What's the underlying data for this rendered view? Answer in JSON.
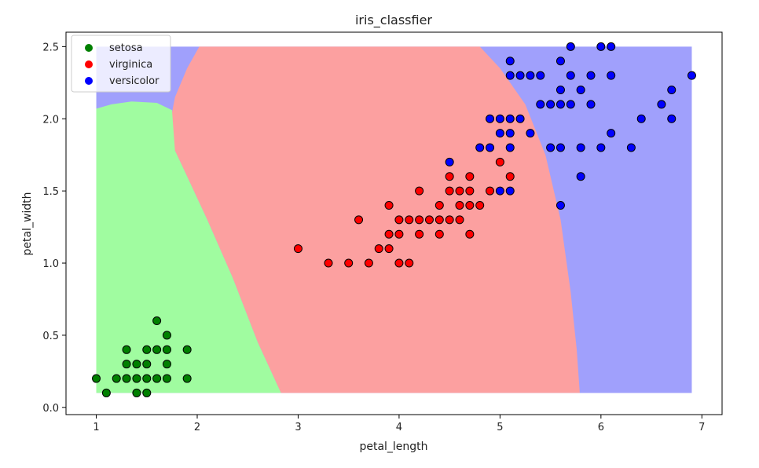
{
  "chart_data": {
    "type": "scatter",
    "title": "iris_classfier",
    "xlabel": "petal_length",
    "ylabel": "petal_width",
    "xlim": [
      0.7,
      7.2
    ],
    "ylim": [
      -0.05,
      2.6
    ],
    "xticks": [
      1,
      2,
      3,
      4,
      5,
      6,
      7
    ],
    "yticks": [
      0.0,
      0.5,
      1.0,
      1.5,
      2.0,
      2.5
    ],
    "ytick_labels": [
      "0.0",
      "0.5",
      "1.0",
      "1.5",
      "2.0",
      "2.5"
    ],
    "grid": false,
    "legend_position": "top-left",
    "decision_regions": {
      "x_range": [
        1.0,
        6.9
      ],
      "y_range": [
        0.1,
        2.5
      ],
      "colors": {
        "setosa": "#a0fca0",
        "virginica": "#fca0a0",
        "versicolor": "#a0a0fc"
      }
    },
    "series": [
      {
        "name": "setosa",
        "color": "#008000",
        "points": [
          [
            1.0,
            0.2
          ],
          [
            1.1,
            0.1
          ],
          [
            1.2,
            0.2
          ],
          [
            1.3,
            0.2
          ],
          [
            1.3,
            0.3
          ],
          [
            1.3,
            0.4
          ],
          [
            1.4,
            0.1
          ],
          [
            1.4,
            0.2
          ],
          [
            1.4,
            0.3
          ],
          [
            1.5,
            0.1
          ],
          [
            1.5,
            0.2
          ],
          [
            1.5,
            0.3
          ],
          [
            1.5,
            0.4
          ],
          [
            1.6,
            0.2
          ],
          [
            1.6,
            0.4
          ],
          [
            1.6,
            0.6
          ],
          [
            1.7,
            0.2
          ],
          [
            1.7,
            0.3
          ],
          [
            1.7,
            0.4
          ],
          [
            1.7,
            0.5
          ],
          [
            1.9,
            0.2
          ],
          [
            1.9,
            0.4
          ]
        ]
      },
      {
        "name": "virginica",
        "color": "#ff0000",
        "points": [
          [
            3.0,
            1.1
          ],
          [
            3.3,
            1.0
          ],
          [
            3.5,
            1.0
          ],
          [
            3.6,
            1.3
          ],
          [
            3.7,
            1.0
          ],
          [
            3.8,
            1.1
          ],
          [
            3.9,
            1.1
          ],
          [
            3.9,
            1.2
          ],
          [
            3.9,
            1.4
          ],
          [
            4.0,
            1.0
          ],
          [
            4.0,
            1.2
          ],
          [
            4.0,
            1.3
          ],
          [
            4.1,
            1.0
          ],
          [
            4.1,
            1.3
          ],
          [
            4.2,
            1.2
          ],
          [
            4.2,
            1.3
          ],
          [
            4.2,
            1.5
          ],
          [
            4.3,
            1.3
          ],
          [
            4.4,
            1.2
          ],
          [
            4.4,
            1.3
          ],
          [
            4.4,
            1.4
          ],
          [
            4.5,
            1.3
          ],
          [
            4.5,
            1.5
          ],
          [
            4.5,
            1.6
          ],
          [
            4.6,
            1.3
          ],
          [
            4.6,
            1.4
          ],
          [
            4.6,
            1.5
          ],
          [
            4.7,
            1.2
          ],
          [
            4.7,
            1.4
          ],
          [
            4.7,
            1.5
          ],
          [
            4.7,
            1.6
          ],
          [
            4.8,
            1.4
          ],
          [
            4.9,
            1.5
          ],
          [
            5.0,
            1.7
          ],
          [
            5.1,
            1.6
          ]
        ]
      },
      {
        "name": "versicolor",
        "color": "#0000ff",
        "points": [
          [
            4.5,
            1.7
          ],
          [
            4.8,
            1.8
          ],
          [
            4.9,
            1.8
          ],
          [
            4.9,
            2.0
          ],
          [
            5.0,
            1.5
          ],
          [
            5.0,
            1.9
          ],
          [
            5.0,
            2.0
          ],
          [
            5.1,
            1.5
          ],
          [
            5.1,
            1.8
          ],
          [
            5.1,
            1.9
          ],
          [
            5.1,
            2.0
          ],
          [
            5.1,
            2.3
          ],
          [
            5.1,
            2.4
          ],
          [
            5.2,
            2.0
          ],
          [
            5.2,
            2.3
          ],
          [
            5.3,
            1.9
          ],
          [
            5.3,
            2.3
          ],
          [
            5.4,
            2.1
          ],
          [
            5.4,
            2.3
          ],
          [
            5.5,
            1.8
          ],
          [
            5.5,
            2.1
          ],
          [
            5.6,
            1.4
          ],
          [
            5.6,
            1.8
          ],
          [
            5.6,
            2.1
          ],
          [
            5.6,
            2.2
          ],
          [
            5.6,
            2.4
          ],
          [
            5.7,
            2.1
          ],
          [
            5.7,
            2.3
          ],
          [
            5.7,
            2.5
          ],
          [
            5.8,
            1.6
          ],
          [
            5.8,
            1.8
          ],
          [
            5.8,
            2.2
          ],
          [
            5.9,
            2.1
          ],
          [
            5.9,
            2.3
          ],
          [
            6.0,
            1.8
          ],
          [
            6.0,
            2.5
          ],
          [
            6.1,
            1.9
          ],
          [
            6.1,
            2.3
          ],
          [
            6.1,
            2.5
          ],
          [
            6.3,
            1.8
          ],
          [
            6.4,
            2.0
          ],
          [
            6.6,
            2.1
          ],
          [
            6.7,
            2.0
          ],
          [
            6.7,
            2.2
          ],
          [
            6.9,
            2.3
          ]
        ]
      }
    ]
  }
}
